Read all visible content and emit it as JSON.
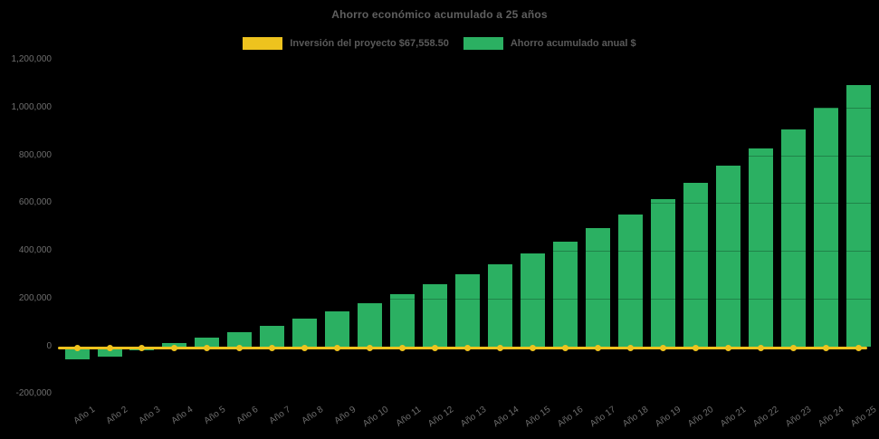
{
  "title": "Ahorro económico acumulado a 25 años",
  "legend": {
    "items": [
      {
        "id": "investment",
        "label": "Inversión del proyecto $67,558.50",
        "color": "#eec31e"
      },
      {
        "id": "savings",
        "label": "Ahorro acumulado anual $",
        "color": "#2bb062"
      }
    ]
  },
  "colors": {
    "background": "#000000",
    "bar_green": "#2bb062",
    "line_yellow": "#eec31e",
    "title_text": "#5f5f5f",
    "legend_text": "#5a5a5a",
    "tick_text": "#6e6e6e",
    "grid": "rgba(0,0,0,0.25)"
  },
  "chart_data": {
    "type": "bar",
    "title": "Ahorro económico acumulado a 25 años",
    "categories": [
      "Año 1",
      "Año 2",
      "Año 3",
      "Año 4",
      "Año 5",
      "Año 6",
      "Año 7",
      "Año 8",
      "Año 9",
      "Año 10",
      "Año 11",
      "Año 12",
      "Año 13",
      "Año 14",
      "Año 15",
      "Año 16",
      "Año 17",
      "Año 18",
      "Año 19",
      "Año 20",
      "Año 21",
      "Año 22",
      "Año 23",
      "Año 24",
      "Año 25"
    ],
    "series": [
      {
        "name": "Ahorro acumulado anual $",
        "type": "bar",
        "color": "#2bb062",
        "values": [
          -56000,
          -44000,
          -18000,
          15000,
          37000,
          58000,
          86000,
          117000,
          147000,
          181000,
          220000,
          261000,
          301000,
          343000,
          388000,
          440000,
          496000,
          553000,
          616000,
          686000,
          758000,
          830000,
          910000,
          998000,
          1095000
        ]
      },
      {
        "name": "Inversión del proyecto $67,558.50",
        "type": "line",
        "color": "#eec31e",
        "marker": "circle",
        "constant_value": -8000
      }
    ],
    "xlabel": "",
    "ylabel": "",
    "ylim": [
      -200000,
      1200000
    ],
    "yticks": [
      {
        "value": 1200000,
        "label": "1,200,000"
      },
      {
        "value": 1000000,
        "label": "1,000,000"
      },
      {
        "value": 800000,
        "label": "800,000"
      },
      {
        "value": 600000,
        "label": "600,000"
      },
      {
        "value": 400000,
        "label": "400,000"
      },
      {
        "value": 200000,
        "label": "200,000"
      },
      {
        "value": 0,
        "label": "0"
      },
      {
        "value": -200000,
        "label": "-200,000"
      }
    ],
    "grid": "horizontal",
    "legend_position": "top-center"
  }
}
